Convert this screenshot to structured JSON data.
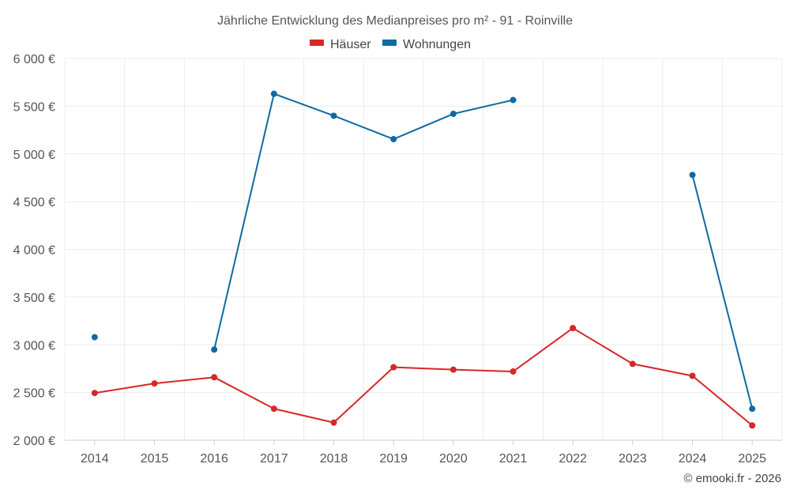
{
  "chart_data": {
    "type": "line",
    "title": "Jährliche Entwicklung des Medianpreises pro m² - 91 - Roinville",
    "categories": [
      "2014",
      "2015",
      "2016",
      "2017",
      "2018",
      "2019",
      "2020",
      "2021",
      "2022",
      "2023",
      "2024",
      "2025"
    ],
    "ylim": [
      2000,
      6000
    ],
    "yticks": [
      2000,
      2500,
      3000,
      3500,
      4000,
      4500,
      5000,
      5500,
      6000
    ],
    "ytick_labels": [
      "2 000 €",
      "2 500 €",
      "3 000 €",
      "3 500 €",
      "4 000 €",
      "4 500 €",
      "5 000 €",
      "5 500 €",
      "6 000 €"
    ],
    "legend_position": "top-center",
    "grid": true,
    "series": [
      {
        "name": "Häuser",
        "color": "#d62728",
        "values": [
          2495,
          2595,
          2660,
          2330,
          2185,
          2765,
          2740,
          2720,
          3175,
          2800,
          2675,
          2155
        ]
      },
      {
        "name": "Wohnungen",
        "color": "#0e6aa3",
        "values": [
          3080,
          null,
          2950,
          5630,
          5400,
          5155,
          5420,
          5565,
          null,
          null,
          4780,
          2330
        ]
      }
    ]
  },
  "credit": "© emooki.fr - 2026"
}
